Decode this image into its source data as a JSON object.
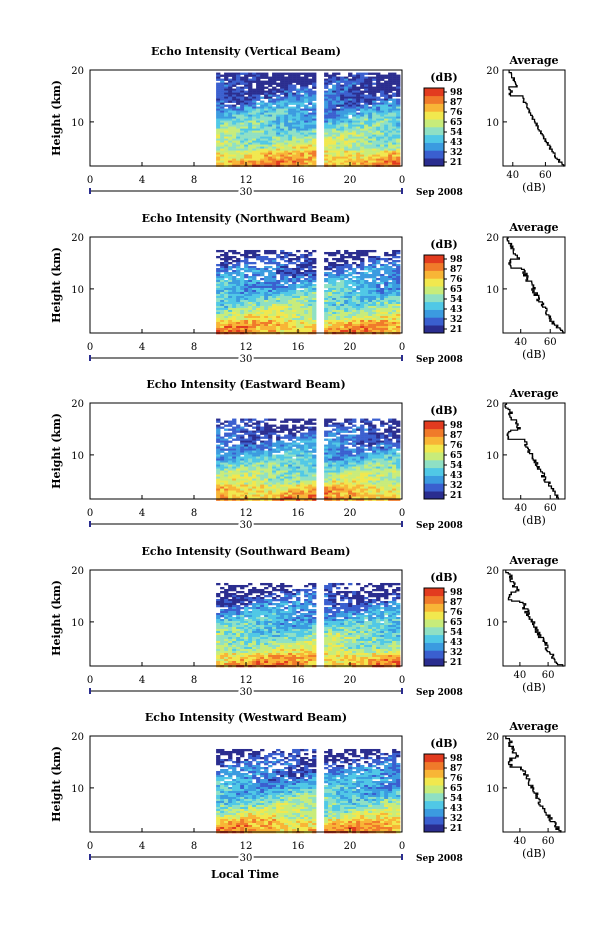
{
  "shared": {
    "ylabel": "Height (km)",
    "yticks": [
      "20",
      "10"
    ],
    "xticks": [
      "0",
      "4",
      "8",
      "12",
      "16",
      "20",
      "0"
    ],
    "date_label": "30",
    "month_label": "Sep 2008",
    "colorbar_unit": "(dB)",
    "colorbar_ticks": [
      "98",
      "87",
      "76",
      "65",
      "54",
      "43",
      "32",
      "21"
    ],
    "avg_title": "Average",
    "avg_xlabel": "(dB)",
    "local_time_label": "Local Time",
    "colormap": [
      "#2a2d8f",
      "#3a5fcf",
      "#3b9be0",
      "#50c8e6",
      "#8fe0c4",
      "#c8ec7a",
      "#f1e84e",
      "#f8b536",
      "#f07a2a",
      "#e23b1f"
    ],
    "gap_color": "#ffffff"
  },
  "chart_data": [
    {
      "type": "heatmap",
      "title": "Echo Intensity (Vertical Beam)",
      "x_range_hours": [
        0,
        24
      ],
      "data_start_hour": 9.7,
      "data_gap_hour": 17.7,
      "y_range_km": [
        1.5,
        20
      ],
      "clim_db": [
        21,
        98
      ],
      "top_km": 19.5,
      "profile": {
        "type": "line",
        "xticks": [
          "40",
          "60"
        ],
        "xrange_db": [
          34,
          72
        ],
        "db_surface": 72,
        "db_top": 38,
        "wiggle": 0.8,
        "upper_bump": {
          "from_km": 15,
          "db": 39
        }
      }
    },
    {
      "type": "heatmap",
      "title": "Echo Intensity (Northward Beam)",
      "x_range_hours": [
        0,
        24
      ],
      "data_start_hour": 9.7,
      "data_gap_hour": 17.7,
      "y_range_km": [
        1.5,
        20
      ],
      "clim_db": [
        21,
        98
      ],
      "top_km": 17.5,
      "profile": {
        "type": "line",
        "xticks": [
          "40",
          "60"
        ],
        "xrange_db": [
          28,
          70
        ],
        "db_surface": 69,
        "db_top": 31,
        "wiggle": 1.8,
        "upper_bump": {
          "from_km": 14,
          "db": 32
        }
      }
    },
    {
      "type": "heatmap",
      "title": "Echo Intensity (Eastward Beam)",
      "x_range_hours": [
        0,
        24
      ],
      "data_start_hour": 9.7,
      "data_gap_hour": 17.7,
      "y_range_km": [
        1.5,
        20
      ],
      "clim_db": [
        21,
        98
      ],
      "top_km": 17.0,
      "profile": {
        "type": "line",
        "xticks": [
          "40",
          "60"
        ],
        "xrange_db": [
          28,
          70
        ],
        "db_surface": 68,
        "db_top": 30,
        "wiggle": 1.8,
        "upper_bump": {
          "from_km": 13,
          "db": 32
        }
      }
    },
    {
      "type": "heatmap",
      "title": "Echo Intensity (Southward Beam)",
      "x_range_hours": [
        0,
        24
      ],
      "data_start_hour": 9.7,
      "data_gap_hour": 17.7,
      "y_range_km": [
        1.5,
        20
      ],
      "clim_db": [
        21,
        98
      ],
      "top_km": 17.5,
      "profile": {
        "type": "line",
        "xticks": [
          "40",
          "60"
        ],
        "xrange_db": [
          28,
          72
        ],
        "db_surface": 70,
        "db_top": 31,
        "wiggle": 1.8,
        "upper_bump": {
          "from_km": 14,
          "db": 33
        }
      }
    },
    {
      "type": "heatmap",
      "title": "Echo Intensity (Westward Beam)",
      "x_range_hours": [
        0,
        24
      ],
      "data_start_hour": 9.7,
      "data_gap_hour": 17.7,
      "y_range_km": [
        1.5,
        20
      ],
      "clim_db": [
        21,
        98
      ],
      "top_km": 17.5,
      "profile": {
        "type": "line",
        "xticks": [
          "40",
          "60"
        ],
        "xrange_db": [
          28,
          72
        ],
        "db_surface": 70,
        "db_top": 31,
        "wiggle": 1.8,
        "upper_bump": {
          "from_km": 14,
          "db": 33
        }
      }
    }
  ]
}
